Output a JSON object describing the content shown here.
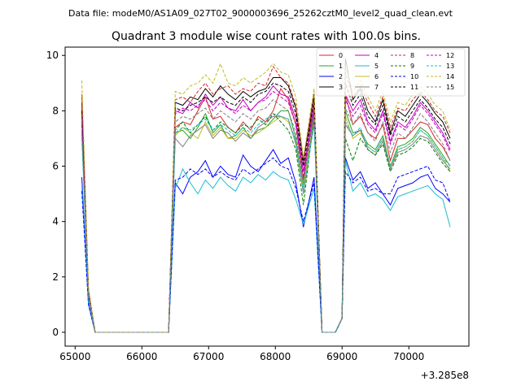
{
  "chart_data": {
    "type": "line",
    "suptitle": "Data file: modeM0/AS1A09_027T02_9000003696_25262cztM0_level2_quad_clean.evt",
    "title": "Quadrant 3 module wise count rates with 100.0s bins.",
    "xlabel": "",
    "ylabel": "",
    "x_offset_label": "+3.285e8",
    "xlim": [
      64850,
      70900
    ],
    "ylim": [
      -0.5,
      10.3
    ],
    "x_ticks": [
      65000,
      66000,
      67000,
      68000,
      69000,
      70000
    ],
    "x_tick_labels": [
      "65000",
      "66000",
      "67000",
      "68000",
      "69000",
      "70000"
    ],
    "y_ticks": [
      0,
      2,
      4,
      6,
      8,
      10
    ],
    "y_tick_labels": [
      "0",
      "2",
      "4",
      "6",
      "8",
      "10"
    ],
    "legend_position": "top-right",
    "segments": [
      [
        65100,
        66400
      ],
      [
        66500,
        68700
      ],
      [
        68800,
        70600
      ]
    ],
    "series": [
      {
        "name": "0",
        "color": "#d62728",
        "dash": "solid",
        "values": [
          8.6,
          1.5,
          0.0,
          7.4,
          7.6,
          7.5,
          8.0,
          8.5,
          7.7,
          7.8,
          7.4,
          7.2,
          7.6,
          7.3,
          7.8,
          7.6,
          8.0,
          8.8,
          8.4,
          7.5,
          5.5,
          8.6,
          0.0,
          8.6,
          7.5,
          7.8,
          7.2,
          7.0,
          7.5,
          6.2,
          7.0,
          7.0,
          7.3,
          7.6,
          7.5,
          7.0,
          6.7,
          6.2
        ]
      },
      {
        "name": "1",
        "color": "#2ca02c",
        "dash": "solid",
        "values": [
          7.9,
          1.3,
          0.0,
          7.2,
          7.3,
          7.0,
          7.4,
          7.9,
          7.2,
          7.5,
          7.0,
          7.1,
          7.4,
          7.0,
          7.3,
          7.4,
          7.7,
          8.0,
          8.0,
          7.0,
          5.3,
          8.1,
          0.0,
          8.0,
          7.2,
          7.3,
          6.8,
          6.6,
          7.1,
          6.0,
          6.7,
          6.8,
          7.0,
          7.4,
          7.2,
          6.8,
          6.4,
          6.0
        ]
      },
      {
        "name": "2",
        "color": "#0000ff",
        "dash": "solid",
        "values": [
          5.6,
          1.0,
          0.0,
          5.4,
          5.0,
          5.6,
          5.8,
          6.2,
          5.6,
          6.0,
          5.7,
          5.6,
          6.4,
          6.0,
          5.8,
          6.2,
          6.6,
          6.1,
          6.3,
          5.4,
          3.8,
          5.6,
          0.0,
          6.3,
          5.5,
          5.8,
          5.2,
          5.4,
          5.0,
          4.6,
          5.2,
          5.3,
          5.4,
          5.6,
          5.7,
          5.2,
          5.0,
          4.7
        ]
      },
      {
        "name": "3",
        "color": "#000000",
        "dash": "solid",
        "values": [
          8.3,
          1.5,
          0.0,
          8.3,
          8.2,
          8.5,
          8.4,
          8.8,
          8.5,
          8.9,
          8.6,
          8.4,
          8.7,
          8.5,
          8.7,
          8.8,
          9.2,
          9.2,
          8.9,
          8.1,
          6.2,
          8.6,
          0.0,
          9.9,
          8.4,
          8.8,
          8.0,
          7.6,
          8.4,
          7.2,
          8.0,
          7.8,
          8.2,
          8.6,
          8.3,
          7.9,
          7.6,
          7.0
        ]
      },
      {
        "name": "4",
        "color": "#c000c0",
        "dash": "solid",
        "values": [
          8.2,
          1.4,
          0.0,
          8.0,
          7.9,
          8.3,
          8.1,
          8.6,
          8.2,
          8.5,
          8.1,
          8.0,
          8.4,
          8.0,
          8.3,
          8.5,
          8.9,
          8.6,
          8.5,
          7.7,
          5.8,
          8.2,
          0.0,
          8.6,
          8.0,
          8.4,
          7.6,
          7.3,
          8.0,
          6.9,
          7.6,
          7.4,
          7.8,
          8.3,
          8.0,
          7.6,
          7.2,
          6.6
        ]
      },
      {
        "name": "5",
        "color": "#17becf",
        "dash": "solid",
        "values": [
          5.3,
          1.0,
          0.0,
          5.2,
          5.9,
          5.4,
          5.0,
          5.5,
          5.2,
          5.6,
          5.3,
          5.1,
          5.6,
          5.4,
          5.7,
          5.5,
          5.8,
          5.6,
          5.5,
          4.8,
          3.9,
          5.2,
          0.0,
          6.2,
          5.1,
          5.4,
          4.9,
          5.0,
          4.8,
          4.4,
          4.9,
          5.0,
          5.1,
          5.2,
          5.3,
          5.0,
          4.8,
          3.8
        ]
      },
      {
        "name": "6",
        "color": "#bcbd22",
        "dash": "solid",
        "values": [
          7.6,
          1.3,
          0.0,
          7.1,
          7.4,
          7.2,
          7.0,
          7.6,
          7.1,
          7.4,
          7.0,
          7.0,
          7.3,
          7.1,
          7.2,
          7.4,
          7.6,
          7.8,
          7.6,
          6.9,
          5.2,
          7.9,
          0.0,
          7.8,
          7.0,
          7.2,
          6.7,
          6.5,
          7.0,
          5.9,
          6.6,
          6.7,
          6.9,
          7.3,
          7.1,
          6.7,
          6.3,
          5.8
        ]
      },
      {
        "name": "7",
        "color": "#7f7f7f",
        "dash": "solid",
        "values": [
          7.2,
          1.2,
          0.0,
          7.0,
          6.7,
          7.1,
          7.3,
          7.5,
          7.0,
          7.3,
          7.2,
          6.9,
          7.2,
          7.0,
          7.4,
          7.6,
          7.8,
          7.8,
          7.7,
          6.8,
          5.0,
          7.6,
          0.0,
          7.5,
          7.1,
          7.3,
          6.6,
          6.4,
          6.9,
          5.9,
          6.5,
          6.6,
          6.8,
          7.1,
          7.0,
          6.6,
          6.2,
          5.9
        ]
      },
      {
        "name": "8",
        "color": "#d62728",
        "dash": "dashed",
        "values": [
          8.5,
          1.5,
          0.0,
          8.4,
          8.5,
          8.3,
          8.7,
          9.0,
          8.6,
          8.8,
          8.9,
          8.6,
          8.8,
          8.7,
          9.0,
          8.9,
          9.6,
          9.2,
          9.0,
          8.2,
          6.1,
          8.6,
          0.0,
          9.4,
          8.5,
          8.9,
          8.3,
          7.8,
          8.5,
          7.4,
          8.1,
          8.0,
          8.4,
          8.7,
          8.4,
          8.0,
          7.8,
          7.2
        ]
      },
      {
        "name": "9",
        "color": "#008000",
        "dash": "dashed",
        "values": [
          7.5,
          1.3,
          0.0,
          7.3,
          7.6,
          7.2,
          7.5,
          7.8,
          7.3,
          7.6,
          7.4,
          7.2,
          7.5,
          7.4,
          7.7,
          7.5,
          7.9,
          7.6,
          7.3,
          6.6,
          4.6,
          7.8,
          0.0,
          7.0,
          6.2,
          7.0,
          6.6,
          6.4,
          6.8,
          5.8,
          6.4,
          6.5,
          6.7,
          7.0,
          6.9,
          6.5,
          6.1,
          5.8
        ]
      },
      {
        "name": "10",
        "color": "#0000ff",
        "dash": "dashed",
        "values": [
          5.1,
          1.0,
          0.0,
          5.5,
          5.6,
          5.9,
          5.7,
          5.9,
          5.6,
          5.8,
          5.6,
          5.5,
          5.9,
          5.7,
          5.9,
          6.1,
          6.3,
          6.0,
          5.9,
          5.2,
          4.0,
          5.4,
          0.0,
          5.8,
          5.4,
          5.6,
          5.1,
          5.2,
          5.0,
          5.0,
          5.6,
          5.7,
          5.8,
          5.9,
          6.0,
          5.5,
          5.4,
          4.7
        ]
      },
      {
        "name": "11",
        "color": "#000000",
        "dash": "dashed",
        "values": [
          8.0,
          1.4,
          0.0,
          8.1,
          8.0,
          8.2,
          8.3,
          8.5,
          8.3,
          8.5,
          8.3,
          8.2,
          8.5,
          8.3,
          8.6,
          8.7,
          9.0,
          8.9,
          8.7,
          7.9,
          6.0,
          8.4,
          0.0,
          9.0,
          8.2,
          8.6,
          7.8,
          7.5,
          8.2,
          7.1,
          7.8,
          7.6,
          8.0,
          8.4,
          8.1,
          7.7,
          7.4,
          6.8
        ]
      },
      {
        "name": "12",
        "color": "#c000c0",
        "dash": "dashed",
        "values": [
          7.8,
          1.4,
          0.0,
          7.9,
          8.1,
          8.0,
          8.2,
          8.4,
          8.0,
          8.3,
          8.1,
          7.9,
          8.2,
          8.0,
          8.3,
          8.4,
          8.7,
          8.5,
          8.3,
          7.5,
          5.6,
          8.0,
          0.0,
          8.4,
          7.8,
          8.2,
          7.5,
          7.2,
          7.9,
          6.8,
          7.5,
          7.3,
          7.7,
          8.2,
          7.9,
          7.5,
          7.1,
          6.5
        ]
      },
      {
        "name": "13",
        "color": "#17becf",
        "dash": "dashed",
        "values": [
          7.0,
          1.2,
          0.0,
          7.2,
          7.4,
          7.3,
          7.5,
          7.7,
          7.3,
          7.5,
          7.3,
          7.1,
          7.4,
          7.2,
          7.5,
          7.7,
          7.9,
          7.8,
          7.7,
          6.9,
          5.1,
          7.5,
          0.0,
          7.6,
          7.1,
          7.4,
          6.7,
          6.5,
          7.0,
          6.0,
          6.6,
          6.7,
          6.9,
          7.3,
          7.1,
          6.7,
          6.3,
          6.0
        ]
      },
      {
        "name": "14",
        "color": "#bcbd22",
        "dash": "dashed",
        "values": [
          9.1,
          1.6,
          0.0,
          8.7,
          8.6,
          8.9,
          9.0,
          9.3,
          9.0,
          9.7,
          9.0,
          8.9,
          9.2,
          9.0,
          9.2,
          9.4,
          9.7,
          9.4,
          9.3,
          8.5,
          6.3,
          8.8,
          0.0,
          9.6,
          8.7,
          9.1,
          8.5,
          8.0,
          8.7,
          7.6,
          8.3,
          8.2,
          8.6,
          8.9,
          8.6,
          8.2,
          8.0,
          7.3
        ]
      },
      {
        "name": "15",
        "color": "#7f7f7f",
        "dash": "dashed",
        "values": [
          7.3,
          1.3,
          0.0,
          7.6,
          7.8,
          7.7,
          7.9,
          8.1,
          7.7,
          8.0,
          7.8,
          7.6,
          7.9,
          7.7,
          8.0,
          8.1,
          8.4,
          8.2,
          8.0,
          7.2,
          5.4,
          7.8,
          0.0,
          8.1,
          7.5,
          7.9,
          7.2,
          6.9,
          7.6,
          6.5,
          7.2,
          7.0,
          7.4,
          7.9,
          7.6,
          7.2,
          6.8,
          6.2
        ]
      }
    ]
  }
}
